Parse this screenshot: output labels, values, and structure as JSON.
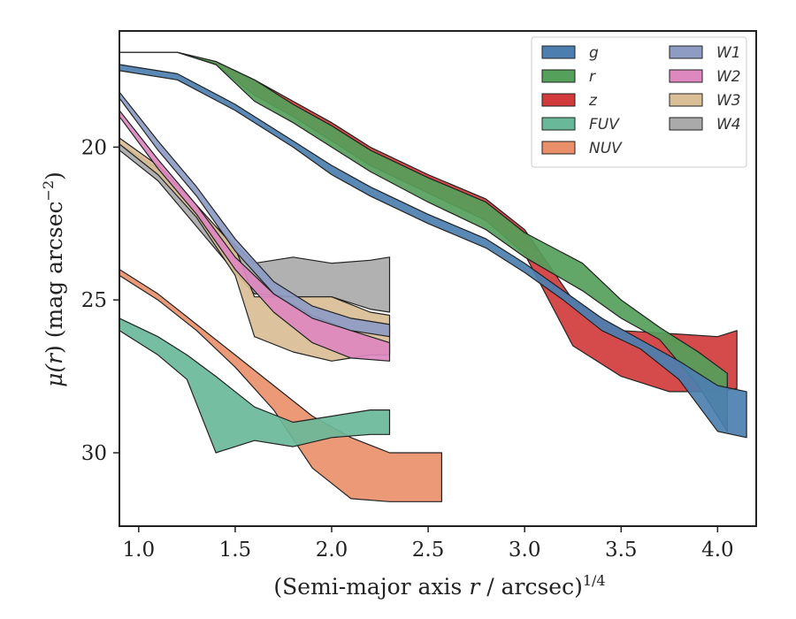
{
  "chart_data": {
    "type": "area",
    "xlabel": "(Semi-major axis r / arcsec)^1/4",
    "ylabel": "μ(r) (mag arcsec^−2)",
    "xlabel_parts": {
      "main": "(Semi-major axis ",
      "var": "r",
      "rest": " / arcsec)",
      "sup": "1/4"
    },
    "ylabel_parts": {
      "mu": "μ(",
      "var": "r",
      "mid": ") (mag arcsec",
      "sup": "−2",
      "close": ")"
    },
    "xlim": [
      0.9,
      4.2
    ],
    "ylim": [
      32.4,
      16.2
    ],
    "y_inverted": true,
    "x_ticks": [
      1.0,
      1.5,
      2.0,
      2.5,
      3.0,
      3.5,
      4.0
    ],
    "x_tick_labels": [
      "1.0",
      "1.5",
      "2.0",
      "2.5",
      "3.0",
      "3.5",
      "4.0"
    ],
    "y_ticks": [
      20,
      25,
      30
    ],
    "y_tick_labels": [
      "20",
      "25",
      "30"
    ],
    "grid": false,
    "legend": {
      "placement": "top-right",
      "columns": 2
    },
    "series": [
      {
        "name": "g",
        "color": "#4c7fb0",
        "x": [
          0.9,
          1.2,
          1.5,
          1.8,
          2.0,
          2.2,
          2.5,
          2.8,
          3.0,
          3.2,
          3.4,
          3.6,
          3.8,
          4.0,
          4.15
        ],
        "y_upper": [
          17.3,
          17.6,
          18.6,
          19.8,
          20.6,
          21.3,
          22.2,
          23.0,
          23.8,
          24.7,
          25.6,
          26.3,
          27.0,
          27.8,
          28.0
        ],
        "y_lower": [
          17.5,
          17.8,
          18.8,
          20.0,
          20.9,
          21.6,
          22.5,
          23.3,
          24.1,
          25.0,
          26.0,
          26.6,
          27.6,
          29.3,
          29.5
        ]
      },
      {
        "name": "r",
        "color": "#55a05a",
        "x": [
          0.9,
          1.2,
          1.4,
          1.6,
          1.8,
          2.0,
          2.2,
          2.5,
          2.8,
          3.0,
          3.3,
          3.5,
          3.7,
          3.9,
          4.05
        ],
        "y_upper": [
          16.9,
          16.9,
          17.2,
          17.8,
          18.6,
          19.3,
          20.1,
          21.0,
          21.8,
          22.8,
          23.8,
          25.0,
          25.9,
          26.7,
          27.4
        ],
        "y_lower": [
          16.9,
          16.9,
          17.3,
          18.5,
          19.2,
          20.0,
          20.8,
          21.8,
          22.7,
          23.6,
          24.7,
          25.6,
          26.3,
          27.8,
          29.3
        ]
      },
      {
        "name": "z",
        "color": "#d13b3b",
        "x": [
          0.9,
          1.2,
          1.4,
          1.6,
          1.8,
          2.0,
          2.2,
          2.5,
          2.8,
          3.0,
          3.25,
          3.5,
          3.75,
          4.0,
          4.1
        ],
        "y_upper": [
          16.9,
          16.9,
          17.2,
          17.8,
          18.5,
          19.2,
          20.0,
          20.9,
          21.7,
          22.7,
          25.0,
          26.0,
          26.1,
          26.2,
          26.0
        ],
        "y_lower": [
          16.9,
          16.9,
          17.3,
          18.3,
          19.0,
          19.8,
          20.6,
          21.5,
          22.4,
          23.5,
          26.5,
          27.5,
          28.0,
          28.0,
          27.9
        ]
      },
      {
        "name": "FUV",
        "color": "#6ab89a",
        "x": [
          0.9,
          1.1,
          1.25,
          1.4,
          1.6,
          1.8,
          2.0,
          2.2,
          2.3
        ],
        "y_upper": [
          25.6,
          26.2,
          26.8,
          27.5,
          28.5,
          29.0,
          28.8,
          28.6,
          28.6
        ],
        "y_lower": [
          26.0,
          26.8,
          27.6,
          30.0,
          29.6,
          29.8,
          29.5,
          29.4,
          29.4
        ]
      },
      {
        "name": "NUV",
        "color": "#e9906b",
        "x": [
          0.9,
          1.1,
          1.3,
          1.5,
          1.7,
          1.9,
          2.1,
          2.3,
          2.57
        ],
        "y_upper": [
          24.0,
          24.8,
          25.8,
          26.8,
          27.8,
          28.8,
          29.5,
          30.0,
          30.0
        ],
        "y_lower": [
          24.2,
          25.0,
          26.0,
          27.2,
          28.6,
          30.5,
          31.5,
          31.6,
          31.6
        ]
      },
      {
        "name": "W1",
        "color": "#8e9cc4",
        "x": [
          0.9,
          1.1,
          1.3,
          1.5,
          1.7,
          1.9,
          2.1,
          2.3
        ],
        "y_upper": [
          18.2,
          19.8,
          21.3,
          23.0,
          24.4,
          25.2,
          25.6,
          25.8
        ],
        "y_lower": [
          18.4,
          20.1,
          21.6,
          23.4,
          24.8,
          25.6,
          26.0,
          26.2
        ]
      },
      {
        "name": "W2",
        "color": "#dd88bf",
        "x": [
          0.9,
          1.1,
          1.3,
          1.5,
          1.7,
          1.9,
          2.1,
          2.3
        ],
        "y_upper": [
          18.8,
          20.4,
          21.9,
          23.6,
          24.8,
          25.5,
          26.0,
          26.4
        ],
        "y_lower": [
          19.0,
          20.7,
          22.2,
          24.0,
          25.4,
          26.4,
          26.9,
          27.0
        ]
      },
      {
        "name": "W3",
        "color": "#d9be96",
        "x": [
          0.9,
          1.1,
          1.3,
          1.5,
          1.6,
          1.8,
          2.0,
          2.2,
          2.3
        ],
        "y_upper": [
          19.7,
          20.6,
          21.9,
          23.3,
          24.9,
          24.9,
          24.9,
          25.4,
          25.5
        ],
        "y_lower": [
          19.9,
          20.9,
          22.3,
          24.2,
          26.2,
          26.7,
          27.0,
          26.8,
          26.8
        ]
      },
      {
        "name": "W4",
        "color": "#aaaaaa",
        "x": [
          0.9,
          1.1,
          1.3,
          1.5,
          1.6,
          1.8,
          2.0,
          2.2,
          2.3
        ],
        "y_upper": [
          19.9,
          20.7,
          22.0,
          23.2,
          23.8,
          23.6,
          23.8,
          23.7,
          23.6
        ],
        "y_lower": [
          20.1,
          21.1,
          22.6,
          24.1,
          24.8,
          24.9,
          24.9,
          25.3,
          25.4
        ]
      }
    ]
  }
}
